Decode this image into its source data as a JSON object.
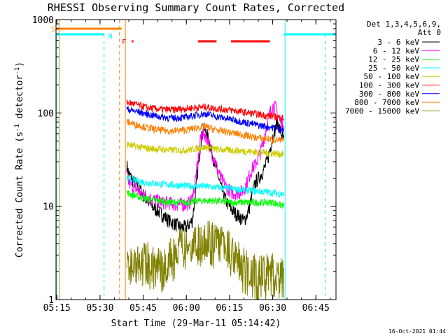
{
  "chart_data": {
    "type": "line",
    "title": "RHESSI Observing Summary Count Rates, Corrected",
    "xlabel": "Start Time (29-Mar-11 05:14:42)",
    "ylabel_main": "Corrected Count Rate (s",
    "ylabel_sup1": "-1",
    "ylabel_mid": " detector",
    "ylabel_sup2": "-1",
    "ylabel_end": ")",
    "ylog": true,
    "ylim": [
      1,
      1000
    ],
    "xlim": [
      314.7,
      412
    ],
    "x_unit": "minutes since 00:00 UT",
    "x_ticks": [
      {
        "v": 315,
        "label": "05:15"
      },
      {
        "v": 330,
        "label": "05:30"
      },
      {
        "v": 345,
        "label": "05:45"
      },
      {
        "v": 360,
        "label": "06:00"
      },
      {
        "v": 375,
        "label": "06:15"
      },
      {
        "v": 390,
        "label": "06:30"
      },
      {
        "v": 405,
        "label": "06:45"
      }
    ],
    "y_ticks": [
      {
        "v": 1,
        "label": "1"
      },
      {
        "v": 10,
        "label": "10"
      },
      {
        "v": 100,
        "label": "100"
      },
      {
        "v": 1000,
        "label": "1000"
      }
    ],
    "legend_header": [
      "Det 1,3,4,5,6,9,",
      "Att 0"
    ],
    "legend_position": "top-right",
    "footer_date": "16-Oct-2021 01:44",
    "series": [
      {
        "name": "3 - 6 keV",
        "color": "#000000",
        "x": [
          339.3,
          340,
          342,
          344,
          346,
          348,
          350,
          352,
          354,
          356,
          358,
          360,
          361,
          362,
          363,
          364,
          365,
          366,
          367,
          368,
          370,
          372,
          374,
          376,
          378,
          380,
          381,
          382,
          383,
          384,
          386,
          387,
          388,
          389,
          390,
          391,
          391.5,
          392,
          393,
          394
        ],
        "y": [
          28,
          22,
          18,
          15,
          12,
          10,
          9,
          8,
          7,
          6.5,
          6,
          6,
          6.5,
          7,
          12,
          25,
          50,
          68,
          62,
          48,
          28,
          16,
          11,
          9,
          8,
          7,
          8,
          10,
          14,
          18,
          22,
          25,
          30,
          40,
          55,
          70,
          80,
          75,
          60,
          50
        ]
      },
      {
        "name": "6 - 12 keV",
        "color": "#ff00ff",
        "x": [
          339.3,
          340,
          342,
          344,
          346,
          348,
          350,
          352,
          354,
          356,
          358,
          360,
          361,
          362,
          363,
          364,
          365,
          366,
          367,
          368,
          370,
          372,
          374,
          376,
          378,
          380,
          381,
          382,
          383,
          384,
          386,
          387,
          388,
          389,
          390,
          391,
          392,
          393,
          394
        ],
        "y": [
          22,
          18,
          16,
          14,
          13,
          12,
          11.5,
          11,
          11,
          10.5,
          10.5,
          10.5,
          11,
          12,
          18,
          30,
          55,
          62,
          55,
          45,
          30,
          20,
          16,
          14,
          14,
          15,
          18,
          22,
          26,
          28,
          40,
          55,
          75,
          100,
          120,
          115,
          90,
          80,
          75
        ]
      },
      {
        "name": "12 - 25 keV",
        "color": "#00ff00",
        "x": [
          339.3,
          342,
          346,
          350,
          355,
          360,
          365,
          370,
          375,
          380,
          385,
          390,
          394
        ],
        "y": [
          14,
          13,
          12,
          11.5,
          11,
          11,
          11.5,
          11.5,
          11,
          11,
          11,
          11,
          10
        ]
      },
      {
        "name": "25 - 50 keV",
        "color": "#00ffff",
        "x": [
          339.3,
          342,
          346,
          350,
          355,
          360,
          365,
          370,
          375,
          380,
          385,
          390,
          394
        ],
        "y": [
          20,
          19,
          18,
          17.5,
          17,
          16.5,
          16.5,
          16,
          15.5,
          15,
          14.5,
          14,
          13.5
        ]
      },
      {
        "name": "50 - 100 keV",
        "color": "#cccc00",
        "x": [
          339.3,
          342,
          346,
          350,
          355,
          360,
          364,
          367,
          370,
          375,
          380,
          385,
          390,
          394
        ],
        "y": [
          46,
          44,
          42,
          41,
          40,
          40,
          42,
          43,
          41,
          40,
          39,
          38,
          37,
          36
        ]
      },
      {
        "name": "100 - 300 keV",
        "color": "#ff0000",
        "x": [
          339.3,
          342,
          346,
          350,
          355,
          360,
          364,
          367,
          370,
          375,
          380,
          385,
          390,
          394
        ],
        "y": [
          130,
          125,
          115,
          110,
          108,
          112,
          115,
          116,
          112,
          108,
          102,
          97,
          92,
          88
        ]
      },
      {
        "name": "300 - 800 keV",
        "color": "#0000ff",
        "x": [
          339.3,
          342,
          346,
          350,
          355,
          360,
          364,
          367,
          370,
          375,
          380,
          385,
          390,
          394
        ],
        "y": [
          110,
          105,
          98,
          92,
          88,
          90,
          96,
          98,
          92,
          86,
          80,
          74,
          70,
          65
        ]
      },
      {
        "name": "800 - 7000 keV",
        "color": "#ff8000",
        "x": [
          339.3,
          342,
          346,
          350,
          355,
          360,
          364,
          367,
          370,
          375,
          380,
          385,
          390,
          394
        ],
        "y": [
          80,
          76,
          70,
          66,
          64,
          66,
          70,
          71,
          66,
          62,
          58,
          54,
          52,
          50
        ]
      },
      {
        "name": "7000 - 15000 keV",
        "color": "#808000",
        "x": [
          339.3,
          342,
          346,
          350,
          355,
          360,
          365,
          370,
          375,
          380,
          385,
          390,
          394
        ],
        "y": [
          2.5,
          2.2,
          2.4,
          2.0,
          2.6,
          3.5,
          4.0,
          3.8,
          3.0,
          2.0,
          1.6,
          1.8,
          1.5
        ]
      }
    ],
    "flags": {
      "saa_label": "S",
      "night_label": "N",
      "flare_label": "F",
      "saa_top_segment": [
        314.7,
        337.5
      ],
      "night_intervals": [
        [
          314.7,
          331.4
        ],
        [
          393.9,
          412
        ]
      ],
      "flare_intervals": [
        [
          341,
          341.6
        ],
        [
          364,
          370.5
        ],
        [
          375.5,
          389
        ]
      ],
      "orange_markers": [
        315.8,
        336.8,
        338.8
      ],
      "cyan_markers": [
        314.9,
        331.4,
        394.3,
        408.3
      ]
    }
  }
}
